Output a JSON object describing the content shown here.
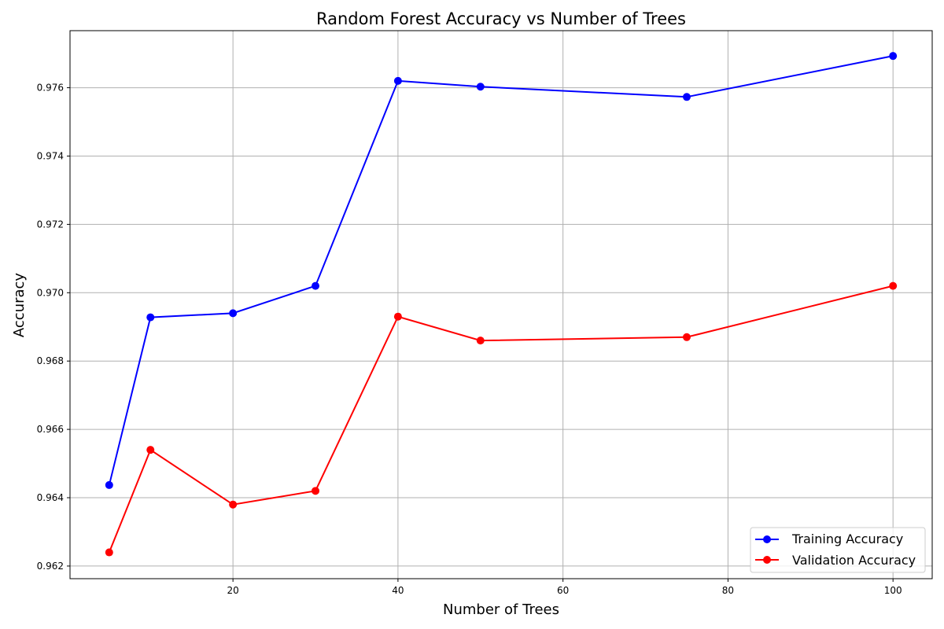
{
  "chart_data": {
    "type": "line",
    "title": "Random Forest Accuracy vs Number of Trees",
    "xlabel": "Number of Trees",
    "ylabel": "Accuracy",
    "x": [
      5,
      10,
      20,
      30,
      40,
      50,
      75,
      100
    ],
    "series": [
      {
        "name": "Training Accuracy",
        "color": "#0000ff",
        "values": [
          0.96437,
          0.96928,
          0.9694,
          0.9702,
          0.9762,
          0.97603,
          0.97573,
          0.97693
        ]
      },
      {
        "name": "Validation Accuracy",
        "color": "#ff0000",
        "values": [
          0.9624,
          0.9654,
          0.9638,
          0.9642,
          0.9693,
          0.9686,
          0.9687,
          0.9702
        ]
      }
    ],
    "xlim": [
      0.25,
      104.75
    ],
    "ylim": [
      0.96163,
      0.97767
    ],
    "xticks": [
      20,
      40,
      60,
      80,
      100
    ],
    "xtick_labels": [
      "20",
      "40",
      "60",
      "80",
      "100"
    ],
    "yticks": [
      0.962,
      0.964,
      0.966,
      0.968,
      0.97,
      0.972,
      0.974,
      0.976
    ],
    "ytick_labels": [
      "0.962",
      "0.964",
      "0.966",
      "0.968",
      "0.970",
      "0.972",
      "0.974",
      "0.976"
    ],
    "grid": true,
    "legend_position": "lower-right"
  }
}
